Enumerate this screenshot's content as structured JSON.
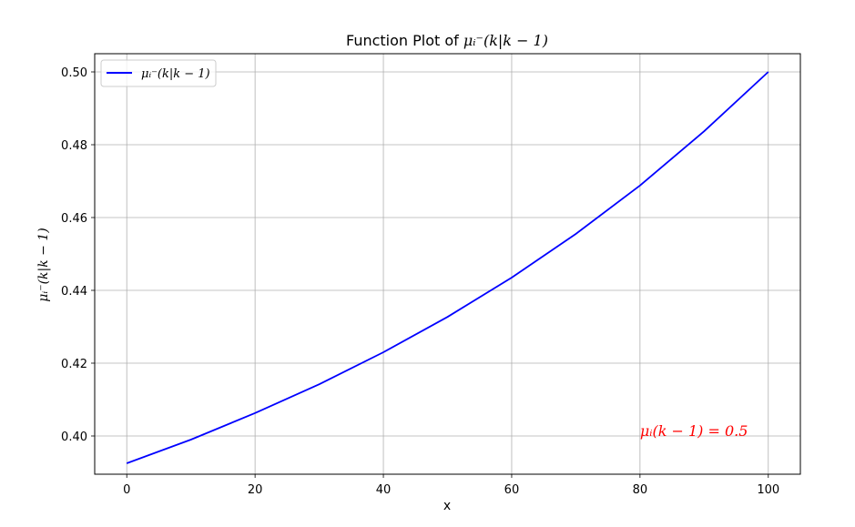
{
  "chart_data": {
    "type": "line",
    "title_prefix": "Function Plot of ",
    "title_math": "μᵢ⁻(k|k − 1)",
    "xlabel": "x",
    "ylabel": "μᵢ⁻(k|k − 1)",
    "xlim": [
      -5,
      105
    ],
    "ylim": [
      0.3895,
      0.505
    ],
    "x_ticks": [
      0,
      20,
      40,
      60,
      80,
      100
    ],
    "y_ticks": [
      0.4,
      0.42,
      0.44,
      0.46,
      0.48,
      0.5
    ],
    "x_tick_labels": [
      "0",
      "20",
      "40",
      "60",
      "80",
      "100"
    ],
    "y_tick_labels": [
      "0.40",
      "0.42",
      "0.44",
      "0.46",
      "0.48",
      "0.50"
    ],
    "grid": true,
    "legend_position": "top-left",
    "series": [
      {
        "name": "μᵢ⁻(k|k − 1)",
        "color": "#0000ff",
        "x": [
          0,
          10,
          20,
          30,
          40,
          50,
          60,
          70,
          80,
          90,
          100
        ],
        "y": [
          0.3925,
          0.399,
          0.4063,
          0.4142,
          0.423,
          0.4327,
          0.4435,
          0.4555,
          0.4688,
          0.4837,
          0.5
        ]
      }
    ],
    "annotations": [
      {
        "text": "μᵢ(k − 1) = 0.5",
        "x": 80,
        "y": 0.4,
        "color": "#ff0000"
      }
    ]
  }
}
